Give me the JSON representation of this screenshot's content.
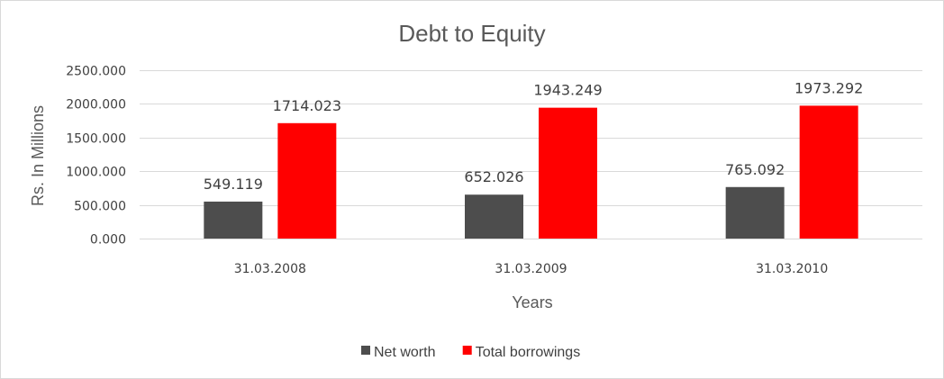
{
  "chart_data": {
    "type": "bar",
    "title": "Debt to Equity",
    "xlabel": "Years",
    "ylabel": "Rs. In Millions",
    "categories": [
      "31.03.2008",
      "31.03.2009",
      "31.03.2010"
    ],
    "series": [
      {
        "name": "Net worth",
        "values": [
          549.119,
          652.026,
          765.092
        ],
        "color": "#4d4d4d"
      },
      {
        "name": "Total borrowings",
        "values": [
          1714.023,
          1943.249,
          1973.292
        ],
        "color": "#ff0000"
      }
    ],
    "ylim": [
      0,
      2500
    ],
    "yticks": [
      0,
      500,
      1000,
      1500,
      2000,
      2500
    ],
    "ytick_labels": [
      "0.000",
      "500.000",
      "1000.000",
      "1500.000",
      "2000.000",
      "2500.000"
    ],
    "grid": true,
    "legend": "bottom"
  }
}
